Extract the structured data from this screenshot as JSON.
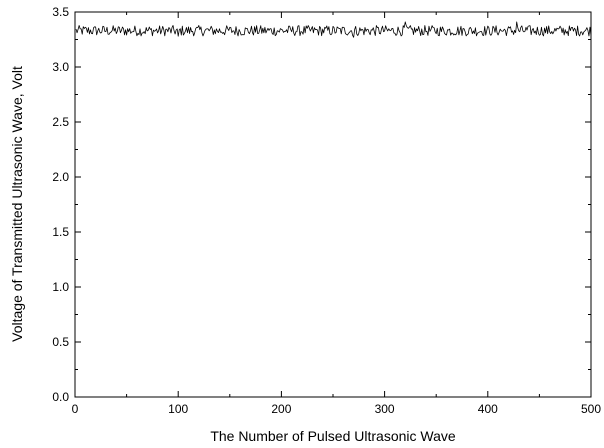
{
  "chart_data": {
    "type": "line",
    "xlabel": "The Number of Pulsed Ultrasonic Wave",
    "ylabel": "Voltage of Transmitted Ultrasonic Wave, Volt",
    "xlim": [
      0,
      500
    ],
    "ylim": [
      0.0,
      3.5
    ],
    "x_ticks": [
      "0",
      "100",
      "200",
      "300",
      "400",
      "500"
    ],
    "y_ticks": [
      "0.0",
      "0.5",
      "1.0",
      "1.5",
      "2.0",
      "2.5",
      "3.0",
      "3.5"
    ],
    "grid": false,
    "series": [
      {
        "x_start": 1,
        "x_end": 500,
        "y_mean": 3.33,
        "y_min": 3.27,
        "y_max": 3.41,
        "color": "#000000"
      }
    ]
  }
}
